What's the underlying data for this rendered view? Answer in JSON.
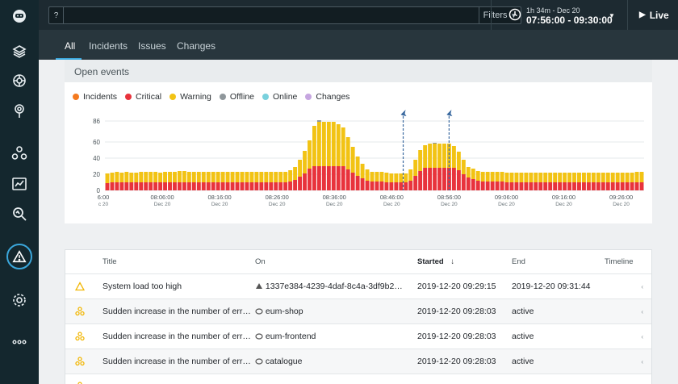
{
  "search": {
    "query_symbol": "?",
    "value": "",
    "placeholder": "",
    "filters_label": "Filters"
  },
  "timepicker": {
    "range_summary": "1h 34m - Dec 20",
    "range": "07:56:00 - 09:30:00"
  },
  "live_label": "Live",
  "tabs": [
    "All",
    "Incidents",
    "Issues",
    "Changes"
  ],
  "events_card": {
    "title": "Open events"
  },
  "colors": {
    "incidents": "#f47a1f",
    "critical": "#e8333c",
    "warning": "#f2c314",
    "offline": "#8f979b",
    "online": "#79d1dd",
    "changes": "#c6a6e0",
    "accent": "#3ba7dc"
  },
  "legend": [
    {
      "label": "Incidents",
      "color": "#f47a1f"
    },
    {
      "label": "Critical",
      "color": "#e8333c"
    },
    {
      "label": "Warning",
      "color": "#f2c314"
    },
    {
      "label": "Offline",
      "color": "#8f979b"
    },
    {
      "label": "Online",
      "color": "#79d1dd"
    },
    {
      "label": "Changes",
      "color": "#c6a6e0"
    }
  ],
  "chart_data": {
    "type": "bar",
    "stacked": true,
    "ylim": [
      0,
      86
    ],
    "yticks": [
      0,
      20,
      40,
      60,
      86
    ],
    "grid": true,
    "x_start": "08:56",
    "x_ticks": [
      {
        "time": "08:06:00",
        "date": "Dec 20",
        "offset_min": 10
      },
      {
        "time": "08:16:00",
        "date": "Dec 20",
        "offset_min": 20
      },
      {
        "time": "08:26:00",
        "date": "Dec 20",
        "offset_min": 30
      },
      {
        "time": "08:36:00",
        "date": "Dec 20",
        "offset_min": 40
      },
      {
        "time": "08:46:00",
        "date": "Dec 20",
        "offset_min": 50
      },
      {
        "time": "08:56:00",
        "date": "Dec 20",
        "offset_min": 60
      },
      {
        "time": "09:06:00",
        "date": "Dec 20",
        "offset_min": 70
      },
      {
        "time": "09:16:00",
        "date": "Dec 20",
        "offset_min": 80
      },
      {
        "time": "09:26:00",
        "date": "Dec 20",
        "offset_min": 90
      }
    ],
    "edge_tick": {
      "time": "6:00",
      "date": "c 20"
    },
    "series": [
      {
        "name": "Critical",
        "color": "#e8333c",
        "values": [
          9,
          10,
          10,
          10,
          10,
          10,
          10,
          10,
          10,
          10,
          10,
          10,
          10,
          10,
          10,
          10,
          10,
          10,
          10,
          10,
          10,
          10,
          10,
          10,
          10,
          10,
          10,
          10,
          10,
          10,
          10,
          10,
          10,
          10,
          10,
          10,
          10,
          10,
          11,
          13,
          17,
          21,
          27,
          30,
          30,
          30,
          30,
          30,
          30,
          30,
          26,
          22,
          18,
          15,
          12,
          11,
          11,
          11,
          10,
          10,
          10,
          10,
          10,
          12,
          18,
          24,
          28,
          28,
          28,
          28,
          28,
          28,
          28,
          25,
          20,
          16,
          14,
          12,
          11,
          11,
          11,
          11,
          11,
          10,
          10,
          10,
          10,
          10,
          10,
          10,
          10,
          10,
          10,
          10,
          10,
          10,
          10,
          10,
          10,
          10,
          10,
          10,
          10,
          10,
          10,
          10,
          10,
          10,
          10,
          10,
          10,
          10
        ]
      },
      {
        "name": "Warning",
        "color": "#f2c314",
        "values": [
          12,
          12,
          13,
          12,
          13,
          12,
          12,
          13,
          13,
          13,
          13,
          12,
          13,
          13,
          13,
          14,
          14,
          13,
          13,
          13,
          13,
          13,
          13,
          13,
          13,
          13,
          13,
          13,
          13,
          13,
          13,
          13,
          13,
          13,
          13,
          13,
          13,
          13,
          14,
          16,
          21,
          28,
          35,
          50,
          55,
          55,
          55,
          55,
          52,
          48,
          40,
          32,
          24,
          18,
          14,
          12,
          12,
          12,
          12,
          11,
          11,
          11,
          11,
          14,
          20,
          26,
          28,
          30,
          30,
          30,
          30,
          30,
          27,
          23,
          18,
          13,
          13,
          12,
          12,
          12,
          12,
          12,
          12,
          12,
          12,
          12,
          12,
          12,
          12,
          12,
          12,
          12,
          12,
          12,
          12,
          12,
          12,
          12,
          12,
          12,
          12,
          12,
          12,
          12,
          12,
          12,
          12,
          12,
          12,
          12,
          13,
          13
        ]
      },
      {
        "name": "Offline",
        "color": "#8f979b",
        "values": [
          0,
          0,
          0,
          0,
          0,
          0,
          0,
          0,
          0,
          0,
          0,
          0,
          0,
          0,
          0,
          0,
          0,
          0,
          0,
          0,
          0,
          0,
          0,
          0,
          0,
          0,
          0,
          0,
          0,
          0,
          0,
          0,
          0,
          0,
          0,
          0,
          0,
          0,
          0,
          0,
          0,
          0,
          0,
          0,
          2,
          0,
          0,
          0,
          0,
          0,
          0,
          0,
          0,
          0,
          0,
          0,
          0,
          0,
          0,
          0,
          0,
          0,
          0,
          0,
          0,
          0,
          0,
          0,
          1,
          0,
          0,
          0,
          0,
          0,
          0,
          0,
          0,
          0,
          0,
          0,
          0,
          0,
          0,
          0,
          0,
          0,
          0,
          0,
          0,
          0,
          0,
          0,
          0,
          0,
          0,
          0,
          0,
          0,
          0,
          0,
          0,
          0,
          0,
          0,
          0,
          0,
          0,
          0,
          0,
          0,
          0,
          0
        ]
      }
    ],
    "change_markers": [
      52,
      60
    ]
  },
  "table": {
    "columns": [
      "Title",
      "On",
      "Started",
      "End",
      "Timeline"
    ],
    "rows": [
      {
        "icon": "warning-icon",
        "title": "System load too high",
        "on_icon": "container-icon",
        "on": "1337e384-4239-4daf-8c4a-3df9b2…",
        "started": "2019-12-20 09:29:15",
        "end": "2019-12-20 09:31:44"
      },
      {
        "icon": "incident-icon",
        "title": "Sudden increase in the number of err…",
        "on_icon": "service-icon",
        "on": "eum-shop",
        "started": "2019-12-20 09:28:03",
        "end": "active"
      },
      {
        "icon": "incident-icon",
        "title": "Sudden increase in the number of err…",
        "on_icon": "service-icon",
        "on": "eum-frontend",
        "started": "2019-12-20 09:28:03",
        "end": "active"
      },
      {
        "icon": "incident-icon",
        "title": "Sudden increase in the number of err…",
        "on_icon": "service-icon",
        "on": "catalogue",
        "started": "2019-12-20 09:28:03",
        "end": "active"
      }
    ]
  }
}
